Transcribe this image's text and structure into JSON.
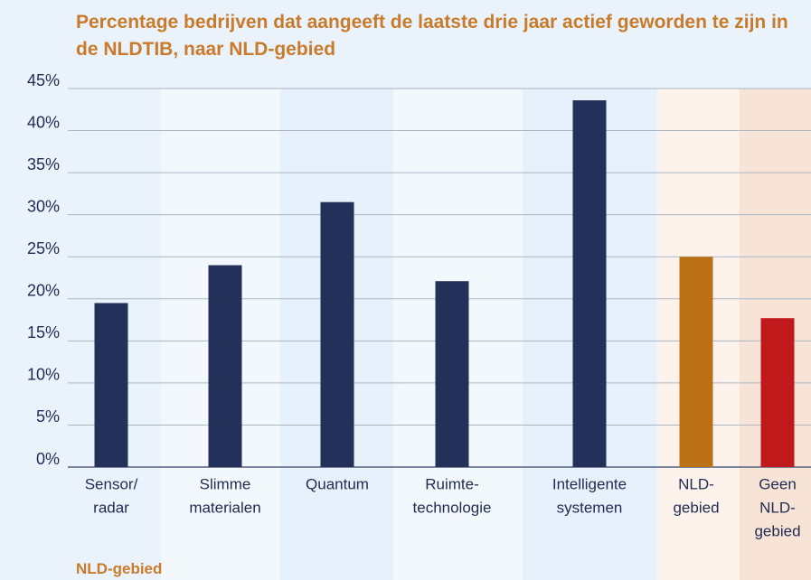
{
  "chart_data": {
    "type": "bar",
    "title": "Percentage bedrijven dat aangeeft de laatste drie jaar actief geworden te zijn in de NLDTIB, naar NLD-gebied",
    "categories": [
      [
        "Sensor/",
        "radar"
      ],
      [
        "Slimme",
        "materialen"
      ],
      [
        "Quantum"
      ],
      [
        "Ruimte-",
        "technologie"
      ],
      [
        "Intelligente",
        "systemen"
      ],
      [
        "NLD-",
        "gebied"
      ],
      [
        "Geen",
        "NLD-",
        "gebied"
      ]
    ],
    "values": [
      19.5,
      24,
      31.5,
      22.1,
      43.6,
      25,
      17.7
    ],
    "colors": [
      "#22305a",
      "#22305a",
      "#22305a",
      "#22305a",
      "#22305a",
      "#bb7016",
      "#c0191c"
    ],
    "band_colors": [
      "#eaf3fb",
      "#f3f8fd",
      "#e6f1fb",
      "#f3f8fd",
      "#e6f1fb",
      "#fdf3ec",
      "#f7e4d6"
    ],
    "ylim": [
      0,
      45
    ],
    "yticks": [
      {
        "value": 0,
        "label": "0%"
      },
      {
        "value": 5,
        "label": "5%"
      },
      {
        "value": 10,
        "label": "10%"
      },
      {
        "value": 15,
        "label": "15%"
      },
      {
        "value": 20,
        "label": "20%"
      },
      {
        "value": 25,
        "label": "25%"
      },
      {
        "value": 30,
        "label": "30%"
      },
      {
        "value": 35,
        "label": "35%"
      },
      {
        "value": 40,
        "label": "40%"
      },
      {
        "value": 45,
        "label": "45%"
      }
    ],
    "grid": true,
    "footer": "NLD-gebied"
  }
}
